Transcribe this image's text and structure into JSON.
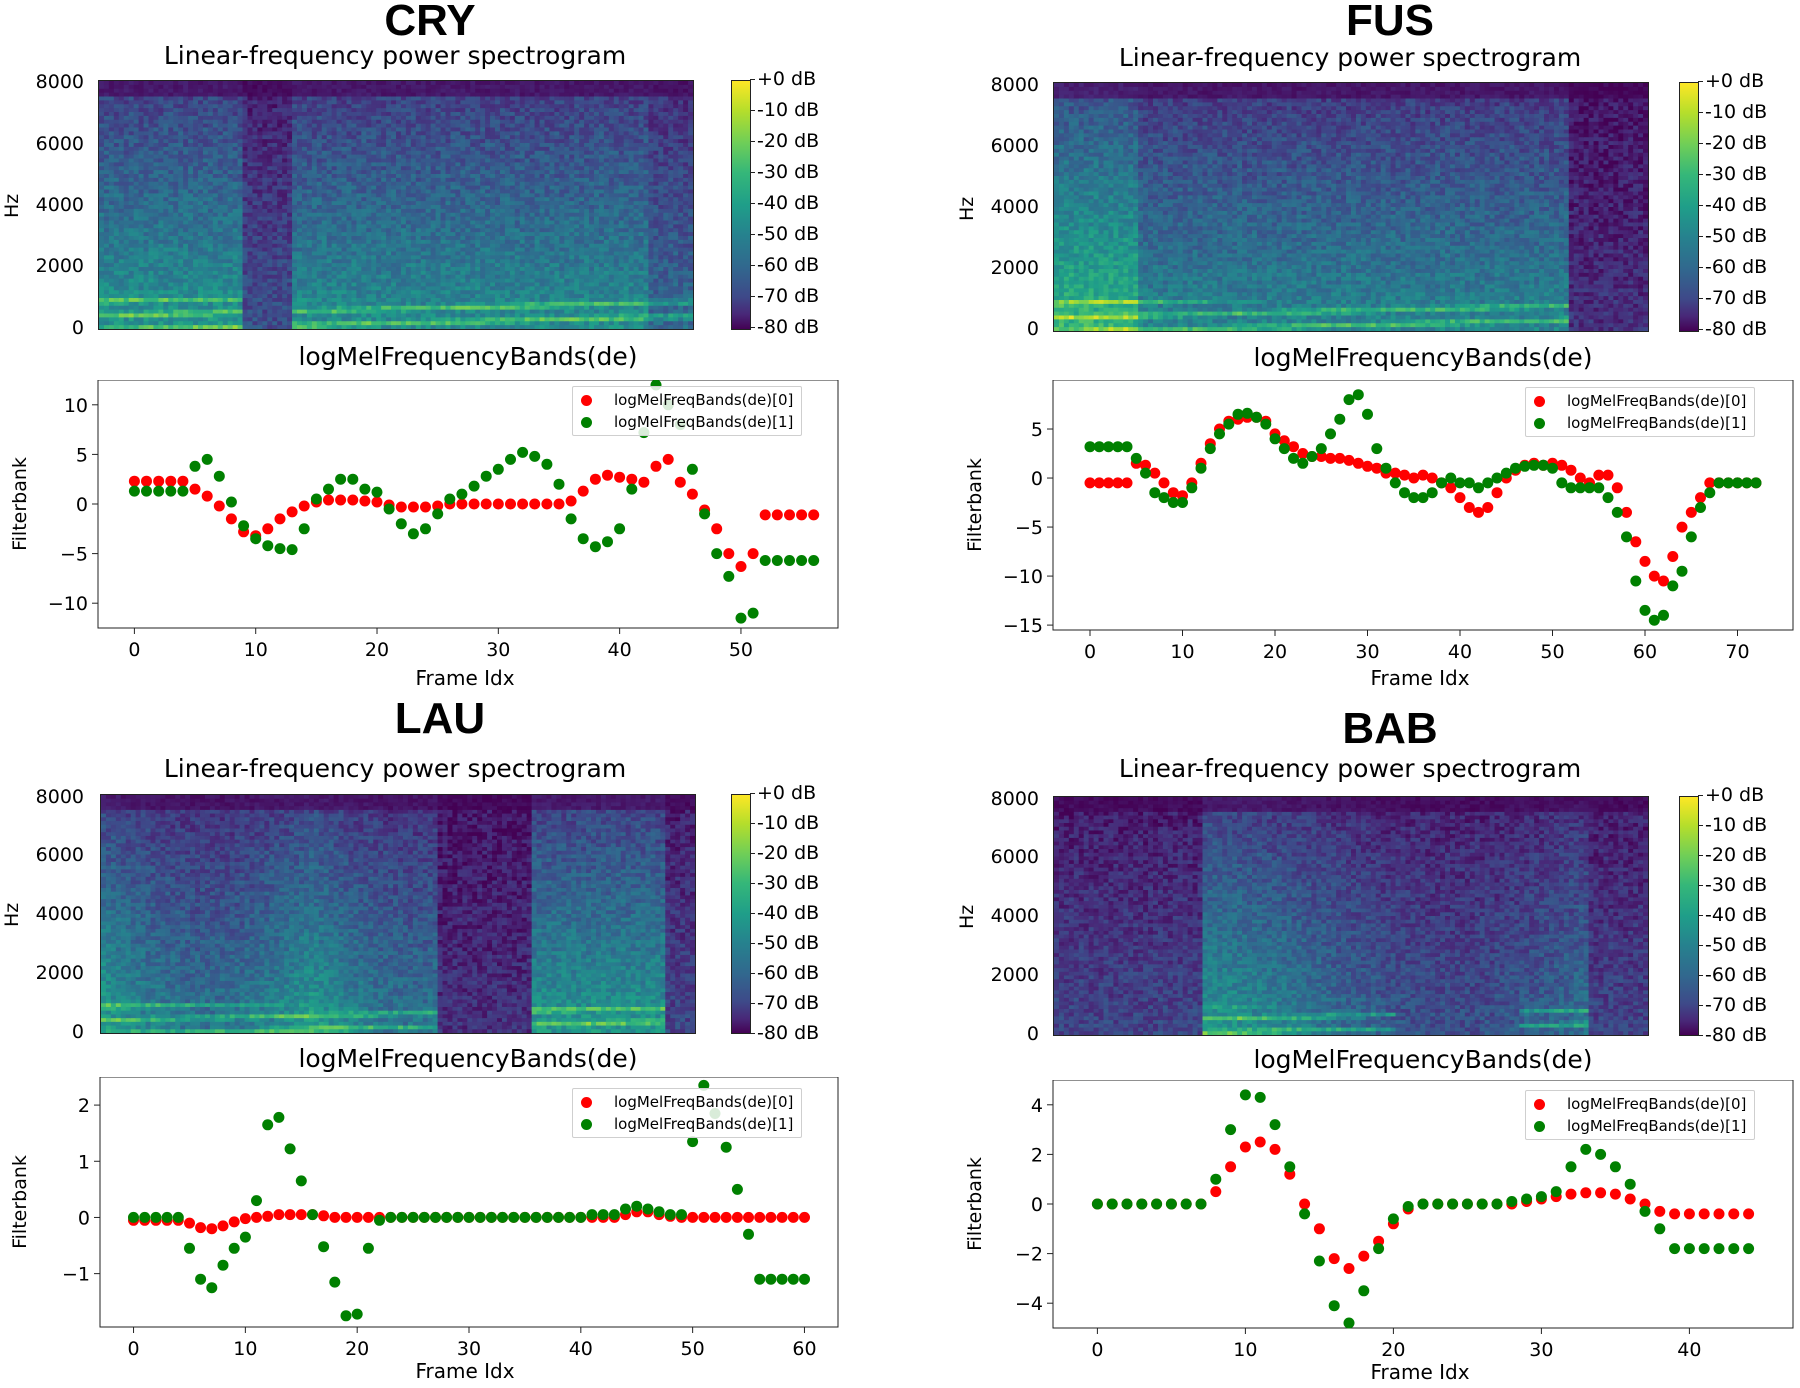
{
  "figure": {
    "colorbar_ticks": [
      "+0 dB",
      "-10 dB",
      "-20 dB",
      "-30 dB",
      "-40 dB",
      "-50 dB",
      "-60 dB",
      "-70 dB",
      "-80 dB"
    ],
    "spectrogram_yticks": [
      "8000",
      "6000",
      "4000",
      "2000",
      "0"
    ],
    "spectrogram_ylabel": "Hz",
    "colors": {
      "series0": "#ff0000",
      "series1": "#008000"
    }
  },
  "chart_data": [
    {
      "name": "CRY",
      "spectrogram": {
        "type": "heatmap",
        "title": "Linear-frequency power spectrogram",
        "ylabel": "Hz",
        "ylim": [
          0,
          8000
        ],
        "colorbar": "dB",
        "clim": [
          -80,
          0
        ]
      },
      "scatter": {
        "type": "scatter",
        "title": "logMelFrequencyBands(de)",
        "xlabel": "Frame Idx",
        "ylabel": "Filterbank",
        "xlim": [
          -3,
          58
        ],
        "ylim": [
          -12.5,
          12.5
        ],
        "xticks": [
          0,
          10,
          20,
          30,
          40,
          50
        ],
        "yticks": [
          10,
          5,
          0,
          -5,
          -10
        ],
        "ytick_labels": [
          "10",
          "5",
          "0",
          "−5",
          "−10"
        ],
        "series": [
          {
            "name": "logMelFreqBands(de)[0]",
            "color": "#ff0000",
            "values": [
              2.3,
              2.3,
              2.3,
              2.3,
              2.3,
              1.5,
              0.8,
              -0.2,
              -1.5,
              -2.8,
              -3.2,
              -2.5,
              -1.5,
              -0.8,
              -0.2,
              0.2,
              0.4,
              0.4,
              0.4,
              0.3,
              0.2,
              -0.1,
              -0.3,
              -0.3,
              -0.3,
              -0.2,
              0.0,
              0.0,
              0.0,
              0.0,
              0.0,
              0.0,
              0.0,
              0.0,
              0.0,
              0.0,
              0.3,
              1.3,
              2.5,
              2.9,
              2.7,
              2.5,
              2.2,
              3.8,
              4.5,
              2.2,
              1.0,
              -0.6,
              -2.5,
              -5.0,
              -6.3,
              -5.0,
              -1.1,
              -1.1,
              -1.1,
              -1.1,
              -1.1
            ]
          },
          {
            "name": "logMelFreqBands(de)[1]",
            "color": "#008000",
            "values": [
              1.3,
              1.3,
              1.3,
              1.3,
              1.3,
              3.8,
              4.5,
              2.8,
              0.2,
              -2.2,
              -3.5,
              -4.2,
              -4.5,
              -4.6,
              -2.5,
              0.5,
              1.5,
              2.5,
              2.5,
              1.5,
              1.2,
              -0.5,
              -2.0,
              -3.0,
              -2.5,
              -1.0,
              0.5,
              1.0,
              1.8,
              2.8,
              3.5,
              4.5,
              5.2,
              4.8,
              4.0,
              2.0,
              -1.5,
              -3.5,
              -4.3,
              -3.8,
              -2.5,
              1.5,
              7.2,
              12.0,
              10.0,
              8.0,
              3.5,
              -1.0,
              -5.0,
              -7.3,
              -11.5,
              -11.0,
              -5.7,
              -5.7,
              -5.7,
              -5.7,
              -5.7
            ]
          }
        ]
      }
    },
    {
      "name": "FUS",
      "spectrogram": {
        "type": "heatmap",
        "title": "Linear-frequency power spectrogram",
        "ylabel": "Hz",
        "ylim": [
          0,
          8000
        ],
        "colorbar": "dB",
        "clim": [
          -80,
          0
        ]
      },
      "scatter": {
        "type": "scatter",
        "title": "logMelFrequencyBands(de)",
        "xlabel": "Frame Idx",
        "ylabel": "Filterbank",
        "xlim": [
          -4,
          76
        ],
        "ylim": [
          -15.5,
          10
        ],
        "xticks": [
          0,
          10,
          20,
          30,
          40,
          50,
          60,
          70
        ],
        "yticks": [
          5,
          0,
          -5,
          -10,
          -15
        ],
        "ytick_labels": [
          "5",
          "0",
          "−5",
          "−10",
          "−15"
        ],
        "series": [
          {
            "name": "logMelFreqBands(de)[0]",
            "color": "#ff0000",
            "values": [
              -0.5,
              -0.5,
              -0.5,
              -0.5,
              -0.5,
              1.5,
              1.3,
              0.5,
              -0.5,
              -1.5,
              -1.8,
              -0.5,
              1.5,
              3.5,
              5.0,
              5.8,
              6.0,
              6.2,
              6.2,
              5.8,
              4.5,
              3.8,
              3.2,
              2.5,
              2.2,
              2.2,
              2.0,
              2.0,
              1.8,
              1.5,
              1.2,
              1.0,
              0.5,
              0.5,
              0.3,
              0.0,
              0.3,
              0.0,
              -0.5,
              -1.0,
              -2.0,
              -3.0,
              -3.5,
              -3.0,
              -1.5,
              0.0,
              0.8,
              1.3,
              1.5,
              1.3,
              1.5,
              1.3,
              0.8,
              0.0,
              -0.5,
              0.3,
              0.3,
              -1.0,
              -3.5,
              -6.5,
              -8.5,
              -10.0,
              -10.5,
              -8.0,
              -5.0,
              -3.5,
              -2.0,
              -0.5,
              -0.5,
              -0.5,
              -0.5,
              -0.5,
              -0.5
            ]
          },
          {
            "name": "logMelFreqBands(de)[1]",
            "color": "#008000",
            "values": [
              3.2,
              3.2,
              3.2,
              3.2,
              3.2,
              2.0,
              0.5,
              -1.5,
              -2.0,
              -2.5,
              -2.5,
              -1.0,
              1.0,
              3.0,
              4.5,
              5.5,
              6.5,
              6.6,
              6.2,
              5.5,
              4.0,
              3.0,
              2.0,
              1.5,
              2.2,
              3.0,
              4.5,
              6.0,
              8.0,
              8.5,
              6.5,
              3.0,
              1.0,
              -0.5,
              -1.5,
              -2.0,
              -2.0,
              -1.5,
              -0.5,
              0.0,
              -0.5,
              -0.5,
              -1.0,
              -0.5,
              0.0,
              0.5,
              1.0,
              1.2,
              1.3,
              1.3,
              1.0,
              -0.5,
              -1.0,
              -1.0,
              -1.0,
              -1.0,
              -2.0,
              -3.5,
              -6.0,
              -10.5,
              -13.5,
              -14.5,
              -14.0,
              -11.0,
              -9.5,
              -6.0,
              -3.0,
              -1.5,
              -0.5,
              -0.5,
              -0.5,
              -0.5,
              -0.5
            ]
          }
        ]
      }
    },
    {
      "name": "LAU",
      "spectrogram": {
        "type": "heatmap",
        "title": "Linear-frequency power spectrogram",
        "ylabel": "Hz",
        "ylim": [
          0,
          8000
        ],
        "colorbar": "dB",
        "clim": [
          -80,
          0
        ]
      },
      "scatter": {
        "type": "scatter",
        "title": "logMelFrequencyBands(de)",
        "xlabel": "Frame Idx",
        "ylabel": "Filterbank",
        "xlim": [
          -3,
          63
        ],
        "ylim": [
          -1.95,
          2.5
        ],
        "xticks": [
          0,
          10,
          20,
          30,
          40,
          50,
          60
        ],
        "yticks": [
          2,
          1,
          0,
          -1
        ],
        "ytick_labels": [
          "2",
          "1",
          "0",
          "−1"
        ],
        "series": [
          {
            "name": "logMelFreqBands(de)[0]",
            "color": "#ff0000",
            "values": [
              -0.05,
              -0.05,
              -0.05,
              -0.05,
              -0.05,
              -0.1,
              -0.18,
              -0.2,
              -0.15,
              -0.08,
              -0.02,
              0.0,
              0.02,
              0.05,
              0.05,
              0.05,
              0.05,
              0.03,
              0.0,
              0.0,
              0.0,
              0.0,
              0.0,
              0.0,
              0.0,
              0.0,
              0.0,
              0.0,
              0.0,
              0.0,
              0.0,
              0.0,
              0.0,
              0.0,
              0.0,
              0.0,
              0.0,
              0.0,
              0.0,
              0.0,
              0.0,
              0.0,
              0.0,
              0.0,
              0.05,
              0.1,
              0.1,
              0.05,
              0.02,
              0.0,
              0.0,
              0.0,
              0.0,
              0.0,
              0.0,
              0.0,
              0.0,
              0.0,
              0.0,
              0.0,
              0.0
            ]
          },
          {
            "name": "logMelFreqBands(de)[1]",
            "color": "#008000",
            "values": [
              0.0,
              0.0,
              0.0,
              0.0,
              0.0,
              -0.55,
              -1.1,
              -1.25,
              -0.85,
              -0.55,
              -0.35,
              0.3,
              1.65,
              1.78,
              1.22,
              0.65,
              0.05,
              -0.52,
              -1.15,
              -1.75,
              -1.72,
              -0.55,
              -0.05,
              0.0,
              0.0,
              0.0,
              0.0,
              0.0,
              0.0,
              0.0,
              0.0,
              0.0,
              0.0,
              0.0,
              0.0,
              0.0,
              0.0,
              0.0,
              0.0,
              0.0,
              0.0,
              0.05,
              0.05,
              0.05,
              0.15,
              0.2,
              0.15,
              0.1,
              0.05,
              0.05,
              1.35,
              2.35,
              1.85,
              1.25,
              0.5,
              -0.3,
              -1.1,
              -1.1,
              -1.1,
              -1.1,
              -1.1
            ]
          }
        ]
      }
    },
    {
      "name": "BAB",
      "spectrogram": {
        "type": "heatmap",
        "title": "Linear-frequency power spectrogram",
        "ylabel": "Hz",
        "ylim": [
          0,
          8000
        ],
        "colorbar": "dB",
        "clim": [
          -80,
          0
        ]
      },
      "scatter": {
        "type": "scatter",
        "title": "logMelFrequencyBands(de)",
        "xlabel": "Frame Idx",
        "ylabel": "Filterbank",
        "xlim": [
          -3,
          47
        ],
        "ylim": [
          -5,
          5
        ],
        "xticks": [
          0,
          10,
          20,
          30,
          40
        ],
        "yticks": [
          4,
          2,
          0,
          -2,
          -4
        ],
        "ytick_labels": [
          "4",
          "2",
          "0",
          "−2",
          "−4"
        ],
        "series": [
          {
            "name": "logMelFreqBands(de)[0]",
            "color": "#ff0000",
            "values": [
              0.0,
              0.0,
              0.0,
              0.0,
              0.0,
              0.0,
              0.0,
              0.0,
              0.5,
              1.5,
              2.3,
              2.5,
              2.2,
              1.2,
              0.0,
              -1.0,
              -2.2,
              -2.6,
              -2.1,
              -1.5,
              -0.8,
              -0.2,
              0.0,
              0.0,
              0.0,
              0.0,
              0.0,
              0.0,
              0.0,
              0.1,
              0.2,
              0.3,
              0.4,
              0.45,
              0.45,
              0.4,
              0.2,
              0.0,
              -0.3,
              -0.4,
              -0.4,
              -0.4,
              -0.4,
              -0.4,
              -0.4
            ]
          },
          {
            "name": "logMelFreqBands(de)[1]",
            "color": "#008000",
            "values": [
              0.0,
              0.0,
              0.0,
              0.0,
              0.0,
              0.0,
              0.0,
              0.0,
              1.0,
              3.0,
              4.4,
              4.3,
              3.2,
              1.5,
              -0.4,
              -2.3,
              -4.1,
              -4.8,
              -3.5,
              -1.8,
              -0.6,
              -0.1,
              0.0,
              0.0,
              0.0,
              0.0,
              0.0,
              0.0,
              0.1,
              0.2,
              0.3,
              0.5,
              1.5,
              2.2,
              2.0,
              1.5,
              0.8,
              -0.3,
              -1.0,
              -1.8,
              -1.8,
              -1.8,
              -1.8,
              -1.8,
              -1.8
            ]
          }
        ]
      }
    }
  ]
}
